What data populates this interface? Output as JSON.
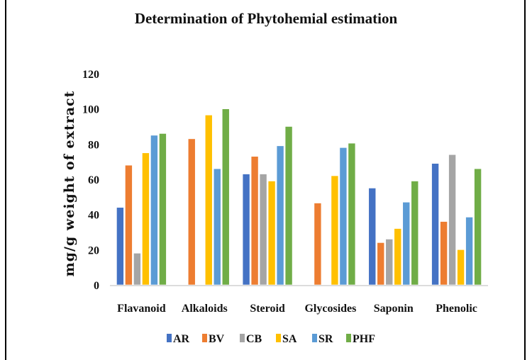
{
  "chart_data": {
    "type": "bar",
    "title": "Determination of Phytohemial estimation",
    "xlabel": "",
    "ylabel": "mg/g weight of extract",
    "ylim": [
      0,
      120
    ],
    "yticks": [
      0,
      20,
      40,
      60,
      80,
      100,
      120
    ],
    "grid": false,
    "legend_position": "bottom",
    "categories": [
      "Flavanoid",
      "Alkaloids",
      "Steroid",
      "Glycosides",
      "Saponin",
      "Phenolic"
    ],
    "series": [
      {
        "name": "AR",
        "color": "#4472C4",
        "values": [
          44,
          0,
          63,
          0,
          55,
          69
        ]
      },
      {
        "name": "BV",
        "color": "#ED7D31",
        "values": [
          68,
          83,
          73,
          46.5,
          24,
          36
        ]
      },
      {
        "name": "CB",
        "color": "#A5A5A5",
        "values": [
          18,
          0,
          63,
          0,
          26,
          74
        ]
      },
      {
        "name": "SA",
        "color": "#FFC000",
        "values": [
          75,
          96.5,
          59,
          62,
          32,
          20
        ]
      },
      {
        "name": "SR",
        "color": "#5B9BD5",
        "values": [
          85,
          66,
          79,
          78,
          47,
          38.5
        ]
      },
      {
        "name": "PHF",
        "color": "#70AD47",
        "values": [
          86,
          100,
          90,
          80.5,
          59,
          66
        ]
      }
    ]
  }
}
